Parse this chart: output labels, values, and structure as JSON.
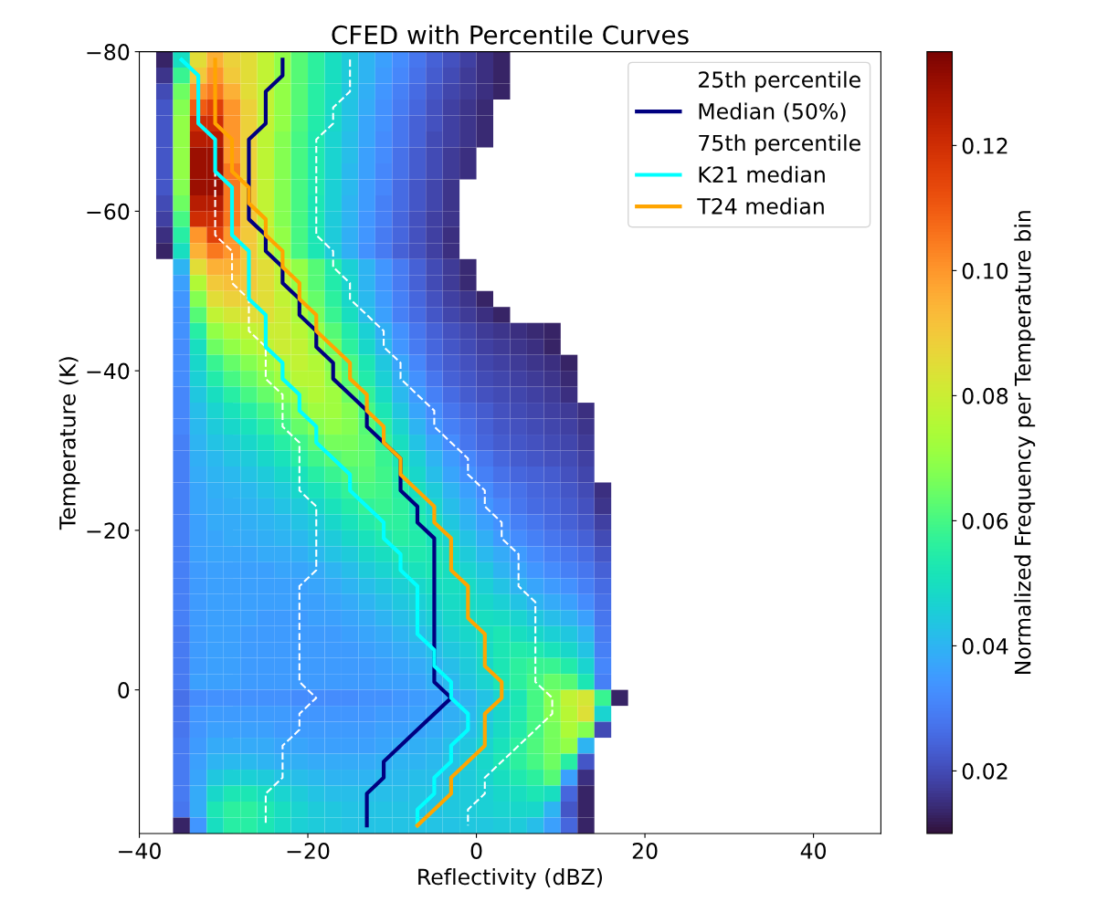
{
  "chart_data": {
    "type": "heatmap",
    "title": "CFED with Percentile Curves",
    "xlabel": "Reflectivity (dBZ)",
    "ylabel": "Temperature (K)",
    "clabel": "Normalized Frequency per Temperature bin",
    "x": [
      -37,
      -35,
      -33,
      -31,
      -29,
      -27,
      -25,
      -23,
      -21,
      -19,
      -17,
      -15,
      -13,
      -11,
      -9,
      -7,
      -5,
      -3,
      -1,
      1,
      3,
      5,
      7,
      9,
      11,
      13,
      15,
      17
    ],
    "xlim": [
      -40,
      48
    ],
    "ylim": [
      18,
      -80
    ],
    "xticks": [
      {
        "value": -40,
        "label": "−40"
      },
      {
        "value": -20,
        "label": "−20"
      },
      0,
      20,
      40
    ],
    "yticks": [
      {
        "value": -80,
        "label": "−80"
      },
      {
        "value": -60,
        "label": "−60"
      },
      {
        "value": -40,
        "label": "−40"
      },
      {
        "value": -20,
        "label": "−20"
      },
      0
    ],
    "clim": [
      0.01,
      0.135
    ],
    "cticks": [
      0.02,
      0.04,
      0.06,
      0.08,
      {
        "value": 0.1,
        "label": "0.10"
      },
      0.12
    ],
    "legend": "top right",
    "cells": [
      [
        0.013,
        0.05,
        0.085,
        0.095,
        0.088,
        0.085,
        0.078,
        0.07,
        0.062,
        0.056,
        0.05,
        0.045,
        0.04,
        0.036,
        0.032,
        0.028,
        0.024,
        0.021,
        0.018,
        0.015,
        0.013,
        null,
        null,
        null,
        null,
        null,
        null,
        null
      ],
      [
        0.016,
        0.058,
        0.09,
        0.1,
        0.09,
        0.085,
        0.078,
        0.07,
        0.062,
        0.056,
        0.05,
        0.045,
        0.04,
        0.035,
        0.031,
        0.027,
        0.023,
        0.02,
        0.017,
        0.015,
        0.013,
        null,
        null,
        null,
        null,
        null,
        null,
        null
      ],
      [
        0.02,
        0.065,
        0.1,
        0.105,
        0.095,
        0.085,
        0.078,
        0.07,
        0.062,
        0.055,
        0.05,
        0.044,
        0.039,
        0.034,
        0.03,
        0.026,
        0.022,
        0.019,
        0.017,
        0.015,
        0.013,
        null,
        null,
        null,
        null,
        null,
        null,
        null
      ],
      [
        0.022,
        0.068,
        0.11,
        0.115,
        0.1,
        0.088,
        0.078,
        0.07,
        0.062,
        0.055,
        0.049,
        0.043,
        0.038,
        0.033,
        0.029,
        0.025,
        0.021,
        0.018,
        0.016,
        0.014,
        null,
        null,
        null,
        null,
        null,
        null,
        null,
        null
      ],
      [
        0.022,
        0.07,
        0.12,
        0.12,
        0.1,
        0.088,
        0.078,
        0.07,
        0.061,
        0.054,
        0.048,
        0.043,
        0.037,
        0.033,
        0.028,
        0.024,
        0.021,
        0.018,
        0.016,
        0.014,
        null,
        null,
        null,
        null,
        null,
        null,
        null,
        null
      ],
      [
        0.022,
        0.07,
        0.125,
        0.125,
        0.1,
        0.088,
        0.077,
        0.068,
        0.06,
        0.053,
        0.047,
        0.042,
        0.037,
        0.032,
        0.028,
        0.024,
        0.02,
        0.018,
        0.016,
        0.014,
        null,
        null,
        null,
        null,
        null,
        null,
        null,
        null
      ],
      [
        0.022,
        0.07,
        0.13,
        0.13,
        0.1,
        0.088,
        0.077,
        0.068,
        0.06,
        0.053,
        0.047,
        0.042,
        0.036,
        0.032,
        0.027,
        0.023,
        0.02,
        0.017,
        0.015,
        null,
        null,
        null,
        null,
        null,
        null,
        null,
        null,
        null
      ],
      [
        0.022,
        0.07,
        0.13,
        0.13,
        0.105,
        0.088,
        0.077,
        0.068,
        0.06,
        0.053,
        0.047,
        0.041,
        0.036,
        0.031,
        0.027,
        0.023,
        0.02,
        0.017,
        0.015,
        null,
        null,
        null,
        null,
        null,
        null,
        null,
        null,
        null
      ],
      [
        0.022,
        0.068,
        0.13,
        0.13,
        0.105,
        0.09,
        0.078,
        0.068,
        0.06,
        0.053,
        0.046,
        0.041,
        0.035,
        0.031,
        0.026,
        0.022,
        0.019,
        0.016,
        null,
        null,
        null,
        null,
        null,
        null,
        null,
        null,
        null,
        null
      ],
      [
        0.02,
        0.065,
        0.125,
        0.125,
        0.105,
        0.09,
        0.078,
        0.068,
        0.06,
        0.052,
        0.046,
        0.04,
        0.035,
        0.03,
        0.026,
        0.022,
        0.019,
        0.016,
        null,
        null,
        null,
        null,
        null,
        null,
        null,
        null,
        null,
        null
      ],
      [
        0.018,
        0.06,
        0.12,
        0.12,
        0.105,
        0.09,
        0.078,
        0.068,
        0.06,
        0.052,
        0.045,
        0.04,
        0.034,
        0.03,
        0.025,
        0.021,
        0.018,
        0.016,
        null,
        null,
        null,
        null,
        null,
        null,
        null,
        null,
        null,
        null
      ],
      [
        0.015,
        0.055,
        0.1,
        0.115,
        0.1,
        0.09,
        0.08,
        0.07,
        0.06,
        0.052,
        0.045,
        0.039,
        0.034,
        0.029,
        0.025,
        0.021,
        0.018,
        0.015,
        null,
        null,
        null,
        null,
        null,
        null,
        null,
        null,
        null,
        null
      ],
      [
        0.013,
        0.05,
        0.095,
        0.105,
        0.1,
        0.09,
        0.08,
        0.07,
        0.06,
        0.052,
        0.045,
        0.039,
        0.033,
        0.029,
        0.024,
        0.021,
        0.018,
        0.015,
        null,
        null,
        null,
        null,
        null,
        null,
        null,
        null,
        null,
        null
      ],
      [
        null,
        0.04,
        0.085,
        0.095,
        0.095,
        0.09,
        0.085,
        0.078,
        0.07,
        0.062,
        0.054,
        0.046,
        0.04,
        0.034,
        0.029,
        0.024,
        0.02,
        0.017,
        0.014,
        null,
        null,
        null,
        null,
        null,
        null,
        null,
        null,
        null
      ],
      [
        null,
        0.036,
        0.075,
        0.09,
        0.092,
        0.09,
        0.085,
        0.078,
        0.07,
        0.062,
        0.054,
        0.047,
        0.04,
        0.034,
        0.029,
        0.024,
        0.02,
        0.017,
        0.014,
        null,
        null,
        null,
        null,
        null,
        null,
        null,
        null,
        null
      ],
      [
        null,
        0.034,
        0.068,
        0.085,
        0.088,
        0.088,
        0.085,
        0.078,
        0.072,
        0.064,
        0.056,
        0.048,
        0.041,
        0.035,
        0.03,
        0.025,
        0.021,
        0.018,
        0.016,
        0.013,
        null,
        null,
        null,
        null,
        null,
        null,
        null,
        null
      ],
      [
        null,
        0.033,
        0.062,
        0.078,
        0.082,
        0.085,
        0.084,
        0.08,
        0.074,
        0.066,
        0.058,
        0.05,
        0.042,
        0.036,
        0.03,
        0.026,
        0.022,
        0.019,
        0.017,
        0.015,
        0.013,
        null,
        null,
        null,
        null,
        null,
        null,
        null
      ],
      [
        null,
        0.033,
        0.055,
        0.07,
        0.075,
        0.078,
        0.08,
        0.08,
        0.076,
        0.07,
        0.062,
        0.054,
        0.046,
        0.039,
        0.033,
        0.028,
        0.024,
        0.021,
        0.019,
        0.017,
        0.016,
        0.015,
        0.014,
        0.013,
        null,
        null,
        null,
        null
      ],
      [
        null,
        0.032,
        0.05,
        0.065,
        0.07,
        0.074,
        0.078,
        0.08,
        0.078,
        0.072,
        0.065,
        0.056,
        0.048,
        0.041,
        0.034,
        0.029,
        0.025,
        0.022,
        0.02,
        0.018,
        0.017,
        0.016,
        0.015,
        0.013,
        null,
        null,
        null,
        null
      ],
      [
        null,
        0.032,
        0.048,
        0.058,
        0.064,
        0.068,
        0.072,
        0.076,
        0.078,
        0.075,
        0.068,
        0.06,
        0.052,
        0.044,
        0.037,
        0.031,
        0.026,
        0.023,
        0.021,
        0.019,
        0.018,
        0.017,
        0.016,
        0.015,
        0.013,
        null,
        null,
        null
      ],
      [
        null,
        0.032,
        0.046,
        0.054,
        0.06,
        0.064,
        0.068,
        0.072,
        0.076,
        0.076,
        0.07,
        0.062,
        0.054,
        0.046,
        0.039,
        0.033,
        0.028,
        0.024,
        0.022,
        0.02,
        0.019,
        0.018,
        0.017,
        0.016,
        0.014,
        null,
        null,
        null
      ],
      [
        null,
        0.031,
        0.044,
        0.05,
        0.055,
        0.06,
        0.064,
        0.068,
        0.072,
        0.075,
        0.072,
        0.065,
        0.057,
        0.049,
        0.041,
        0.035,
        0.03,
        0.026,
        0.023,
        0.021,
        0.02,
        0.019,
        0.018,
        0.017,
        0.015,
        null,
        null,
        null
      ],
      [
        null,
        0.031,
        0.042,
        0.047,
        0.051,
        0.055,
        0.059,
        0.063,
        0.068,
        0.072,
        0.072,
        0.068,
        0.06,
        0.052,
        0.044,
        0.037,
        0.032,
        0.028,
        0.025,
        0.023,
        0.021,
        0.02,
        0.019,
        0.018,
        0.017,
        0.015,
        null,
        null
      ],
      [
        null,
        0.031,
        0.041,
        0.045,
        0.048,
        0.051,
        0.055,
        0.059,
        0.064,
        0.068,
        0.07,
        0.068,
        0.062,
        0.055,
        0.047,
        0.04,
        0.034,
        0.03,
        0.027,
        0.024,
        0.022,
        0.021,
        0.02,
        0.019,
        0.018,
        0.016,
        null,
        null
      ],
      [
        null,
        0.03,
        0.04,
        0.043,
        0.045,
        0.048,
        0.051,
        0.055,
        0.059,
        0.063,
        0.066,
        0.066,
        0.063,
        0.057,
        0.05,
        0.043,
        0.037,
        0.032,
        0.028,
        0.025,
        0.023,
        0.022,
        0.021,
        0.02,
        0.019,
        0.017,
        null,
        null
      ],
      [
        null,
        0.03,
        0.039,
        0.041,
        0.043,
        0.045,
        0.048,
        0.051,
        0.055,
        0.059,
        0.062,
        0.064,
        0.063,
        0.058,
        0.052,
        0.046,
        0.04,
        0.035,
        0.031,
        0.028,
        0.025,
        0.023,
        0.022,
        0.021,
        0.02,
        0.018,
        null,
        null
      ],
      [
        null,
        0.03,
        0.038,
        0.04,
        0.041,
        0.043,
        0.045,
        0.048,
        0.051,
        0.055,
        0.058,
        0.061,
        0.062,
        0.059,
        0.054,
        0.048,
        0.042,
        0.037,
        0.033,
        0.03,
        0.027,
        0.025,
        0.024,
        0.023,
        0.021,
        0.019,
        null,
        null
      ],
      [
        null,
        0.03,
        0.037,
        0.039,
        0.04,
        0.041,
        0.043,
        0.045,
        0.048,
        0.051,
        0.054,
        0.057,
        0.06,
        0.059,
        0.055,
        0.05,
        0.045,
        0.04,
        0.036,
        0.032,
        0.029,
        0.027,
        0.025,
        0.024,
        0.022,
        0.02,
        0.015,
        null
      ],
      [
        null,
        0.03,
        0.037,
        0.038,
        0.039,
        0.04,
        0.041,
        0.043,
        0.045,
        0.048,
        0.051,
        0.054,
        0.057,
        0.058,
        0.056,
        0.052,
        0.047,
        0.042,
        0.038,
        0.034,
        0.031,
        0.028,
        0.026,
        0.025,
        0.023,
        0.021,
        0.016,
        null
      ],
      [
        null,
        0.03,
        0.036,
        0.038,
        0.038,
        0.039,
        0.04,
        0.041,
        0.043,
        0.045,
        0.048,
        0.051,
        0.054,
        0.056,
        0.056,
        0.053,
        0.049,
        0.044,
        0.04,
        0.036,
        0.033,
        0.03,
        0.028,
        0.026,
        0.024,
        0.022,
        0.018,
        null
      ],
      [
        null,
        0.03,
        0.036,
        0.037,
        0.038,
        0.038,
        0.039,
        0.04,
        0.041,
        0.043,
        0.045,
        0.048,
        0.051,
        0.053,
        0.055,
        0.054,
        0.051,
        0.047,
        0.043,
        0.039,
        0.035,
        0.032,
        0.03,
        0.028,
        0.026,
        0.024,
        0.02,
        null
      ],
      [
        null,
        0.03,
        0.036,
        0.037,
        0.037,
        0.037,
        0.038,
        0.038,
        0.039,
        0.041,
        0.043,
        0.045,
        0.048,
        0.05,
        0.052,
        0.053,
        0.052,
        0.049,
        0.045,
        0.041,
        0.038,
        0.035,
        0.032,
        0.03,
        0.028,
        0.026,
        0.022,
        null
      ],
      [
        null,
        0.03,
        0.035,
        0.036,
        0.036,
        0.036,
        0.036,
        0.037,
        0.037,
        0.038,
        0.04,
        0.042,
        0.045,
        0.047,
        0.049,
        0.051,
        0.052,
        0.05,
        0.047,
        0.044,
        0.04,
        0.037,
        0.034,
        0.032,
        0.03,
        0.028,
        0.024,
        null
      ],
      [
        null,
        0.03,
        0.035,
        0.036,
        0.036,
        0.036,
        0.036,
        0.036,
        0.036,
        0.037,
        0.038,
        0.04,
        0.042,
        0.044,
        0.046,
        0.048,
        0.05,
        0.05,
        0.049,
        0.046,
        0.043,
        0.04,
        0.037,
        0.035,
        0.033,
        0.03,
        0.026,
        null
      ],
      [
        null,
        0.03,
        0.035,
        0.036,
        0.036,
        0.036,
        0.036,
        0.036,
        0.036,
        0.036,
        0.037,
        0.038,
        0.04,
        0.042,
        0.044,
        0.046,
        0.048,
        0.049,
        0.049,
        0.048,
        0.046,
        0.043,
        0.04,
        0.038,
        0.036,
        0.032,
        0.027,
        null
      ],
      [
        null,
        0.03,
        0.035,
        0.036,
        0.036,
        0.036,
        0.035,
        0.035,
        0.035,
        0.036,
        0.036,
        0.037,
        0.038,
        0.04,
        0.042,
        0.044,
        0.046,
        0.048,
        0.049,
        0.05,
        0.049,
        0.047,
        0.044,
        0.042,
        0.04,
        0.036,
        0.028,
        null
      ],
      [
        null,
        0.029,
        0.035,
        0.036,
        0.036,
        0.035,
        0.035,
        0.035,
        0.035,
        0.035,
        0.035,
        0.036,
        0.037,
        0.038,
        0.04,
        0.042,
        0.044,
        0.046,
        0.048,
        0.05,
        0.052,
        0.05,
        0.048,
        0.046,
        0.044,
        0.04,
        0.029,
        null
      ],
      [
        null,
        0.029,
        0.035,
        0.036,
        0.036,
        0.035,
        0.035,
        0.035,
        0.035,
        0.035,
        0.035,
        0.035,
        0.036,
        0.037,
        0.038,
        0.04,
        0.042,
        0.044,
        0.046,
        0.049,
        0.052,
        0.054,
        0.053,
        0.051,
        0.048,
        0.043,
        0.03,
        null
      ],
      [
        null,
        0.029,
        0.035,
        0.036,
        0.036,
        0.035,
        0.035,
        0.035,
        0.035,
        0.035,
        0.035,
        0.035,
        0.035,
        0.036,
        0.037,
        0.038,
        0.04,
        0.042,
        0.045,
        0.048,
        0.052,
        0.056,
        0.058,
        0.058,
        0.054,
        0.047,
        0.031,
        null
      ],
      [
        null,
        0.029,
        0.036,
        0.036,
        0.036,
        0.035,
        0.035,
        0.035,
        0.035,
        0.035,
        0.035,
        0.035,
        0.035,
        0.036,
        0.036,
        0.037,
        0.039,
        0.041,
        0.044,
        0.047,
        0.052,
        0.056,
        0.06,
        0.064,
        0.062,
        0.052,
        0.03,
        null
      ],
      [
        null,
        0.027,
        0.032,
        0.033,
        0.033,
        0.033,
        0.033,
        0.033,
        0.032,
        0.032,
        0.032,
        0.032,
        0.033,
        0.033,
        0.034,
        0.035,
        0.036,
        0.038,
        0.04,
        0.043,
        0.047,
        0.052,
        0.06,
        0.068,
        0.078,
        0.082,
        0.058,
        0.013
      ],
      [
        null,
        0.028,
        0.034,
        0.035,
        0.035,
        0.035,
        0.035,
        0.035,
        0.034,
        0.034,
        0.034,
        0.034,
        0.034,
        0.035,
        0.035,
        0.036,
        0.037,
        0.039,
        0.041,
        0.044,
        0.048,
        0.053,
        0.06,
        0.068,
        0.076,
        0.084,
        0.047,
        null
      ],
      [
        null,
        0.028,
        0.034,
        0.036,
        0.036,
        0.036,
        0.036,
        0.035,
        0.035,
        0.035,
        0.035,
        0.035,
        0.035,
        0.036,
        0.036,
        0.037,
        0.038,
        0.04,
        0.042,
        0.045,
        0.049,
        0.054,
        0.06,
        0.066,
        0.074,
        0.068,
        0.02,
        null
      ],
      [
        null,
        0.029,
        0.035,
        0.038,
        0.038,
        0.038,
        0.038,
        0.037,
        0.037,
        0.036,
        0.036,
        0.036,
        0.036,
        0.037,
        0.038,
        0.039,
        0.04,
        0.042,
        0.044,
        0.047,
        0.051,
        0.056,
        0.061,
        0.066,
        0.07,
        0.04,
        null,
        null
      ],
      [
        null,
        0.029,
        0.036,
        0.04,
        0.041,
        0.041,
        0.04,
        0.039,
        0.039,
        0.038,
        0.038,
        0.038,
        0.038,
        0.039,
        0.04,
        0.04,
        0.041,
        0.043,
        0.045,
        0.048,
        0.052,
        0.056,
        0.06,
        0.065,
        0.055,
        0.022,
        null,
        null
      ],
      [
        null,
        0.029,
        0.037,
        0.044,
        0.046,
        0.046,
        0.045,
        0.043,
        0.042,
        0.041,
        0.04,
        0.04,
        0.04,
        0.041,
        0.041,
        0.042,
        0.042,
        0.043,
        0.045,
        0.047,
        0.05,
        0.053,
        0.056,
        0.062,
        0.036,
        0.015,
        null,
        null
      ],
      [
        null,
        0.029,
        0.038,
        0.048,
        0.052,
        0.052,
        0.05,
        0.047,
        0.045,
        0.043,
        0.042,
        0.042,
        0.042,
        0.042,
        0.042,
        0.043,
        0.043,
        0.044,
        0.045,
        0.046,
        0.048,
        0.05,
        0.052,
        0.05,
        0.025,
        0.013,
        null,
        null
      ],
      [
        null,
        0.028,
        0.038,
        0.052,
        0.056,
        0.056,
        0.053,
        0.05,
        0.047,
        0.045,
        0.044,
        0.043,
        0.043,
        0.043,
        0.043,
        0.043,
        0.043,
        0.044,
        0.045,
        0.046,
        0.047,
        0.048,
        0.048,
        0.04,
        0.022,
        0.013,
        null,
        null
      ],
      [
        null,
        0.013,
        0.034,
        0.05,
        0.055,
        0.055,
        0.052,
        0.049,
        0.046,
        0.045,
        0.044,
        0.043,
        0.043,
        0.043,
        0.043,
        0.043,
        0.043,
        0.043,
        0.044,
        0.044,
        0.045,
        0.045,
        0.042,
        0.036,
        0.025,
        0.013,
        null,
        null
      ]
    ],
    "series": [
      {
        "name": "25th percentile",
        "type": "line",
        "color": "#ffffff",
        "line_style": "dashed",
        "x": [
          -31,
          -31,
          -31,
          -31,
          -31,
          -31,
          -31,
          -29,
          -29,
          -29,
          -27,
          -27,
          -27,
          -25,
          -25,
          -25,
          -23,
          -23,
          -23,
          -21,
          -21,
          -21,
          -21,
          -19,
          -19,
          -19,
          -19,
          -19,
          -21,
          -21,
          -21,
          -21,
          -21,
          -21,
          -21,
          -19,
          -21,
          -21,
          -23,
          -23,
          -23,
          -25,
          -25,
          -25
        ],
        "values": [
          -69,
          -67,
          -65,
          -63,
          -61,
          -59,
          -57,
          -55,
          -53,
          -51,
          -49,
          -47,
          -45,
          -43,
          -41,
          -39,
          -37,
          -35,
          -33,
          -31,
          -29,
          -27,
          -25,
          -23,
          -21,
          -19,
          -17,
          -15,
          -13,
          -11,
          -9,
          -7,
          -5,
          -3,
          -1,
          1,
          3,
          5,
          7,
          9,
          11,
          13,
          15,
          17
        ]
      },
      {
        "name": "Median (50%)",
        "type": "line",
        "color": "#000080",
        "line_style": "solid",
        "x": [
          -23,
          -23,
          -25,
          -25,
          -25,
          -27,
          -27,
          -27,
          -27,
          -27,
          -27,
          -25,
          -25,
          -23,
          -23,
          -21,
          -21,
          -19,
          -19,
          -17,
          -17,
          -15,
          -13,
          -13,
          -11,
          -9,
          -9,
          -9,
          -7,
          -7,
          -5,
          -5,
          -5,
          -5,
          -5,
          -5,
          -5,
          -5,
          -5,
          -5,
          -3,
          -5,
          -7,
          -9,
          -11,
          -11,
          -13,
          -13,
          -13
        ],
        "values": [
          -79,
          -77,
          -75,
          -73,
          -71,
          -69,
          -67,
          -65,
          -63,
          -61,
          -59,
          -57,
          -55,
          -53,
          -51,
          -49,
          -47,
          -45,
          -43,
          -41,
          -39,
          -37,
          -35,
          -33,
          -31,
          -29,
          -27,
          -25,
          -23,
          -21,
          -19,
          -17,
          -15,
          -13,
          -11,
          -9,
          -7,
          -5,
          -3,
          -1,
          1,
          3,
          5,
          7,
          9,
          11,
          13,
          15,
          17
        ]
      },
      {
        "name": "75th percentile",
        "type": "line",
        "color": "#ffffff",
        "line_style": "dashed",
        "x": [
          -15,
          -15,
          -15,
          -17,
          -17,
          -19,
          -19,
          -19,
          -19,
          -19,
          -19,
          -19,
          -17,
          -17,
          -15,
          -15,
          -13,
          -11,
          -11,
          -9,
          -9,
          -7,
          -5,
          -5,
          -3,
          -1,
          -1,
          1,
          1,
          3,
          3,
          5,
          5,
          5,
          7,
          7,
          7,
          7,
          7,
          7,
          9,
          9,
          7,
          5,
          3,
          1,
          1,
          -1,
          -1
        ],
        "values": [
          -79,
          -77,
          -75,
          -73,
          -71,
          -69,
          -67,
          -65,
          -63,
          -61,
          -59,
          -57,
          -55,
          -53,
          -51,
          -49,
          -47,
          -45,
          -43,
          -41,
          -39,
          -37,
          -35,
          -33,
          -31,
          -29,
          -27,
          -25,
          -23,
          -21,
          -19,
          -17,
          -15,
          -13,
          -11,
          -9,
          -7,
          -5,
          -3,
          -1,
          1,
          3,
          5,
          7,
          9,
          11,
          13,
          15,
          17
        ]
      },
      {
        "name": "K21 median",
        "type": "line",
        "color": "#00ffff",
        "line_style": "solid",
        "x": [
          -35,
          -33,
          -33,
          -33,
          -33,
          -31,
          -31,
          -31,
          -29,
          -29,
          -29,
          -29,
          -27,
          -27,
          -27,
          -27,
          -25,
          -25,
          -25,
          -23,
          -23,
          -21,
          -21,
          -19,
          -19,
          -17,
          -15,
          -15,
          -13,
          -11,
          -11,
          -9,
          -9,
          -7,
          -7,
          -7,
          -7,
          -5,
          -5,
          -3,
          -3,
          -1,
          -1,
          -3,
          -3,
          -5,
          -5,
          -7,
          -7
        ],
        "values": [
          -79,
          -77,
          -75,
          -73,
          -71,
          -69,
          -67,
          -65,
          -63,
          -61,
          -59,
          -57,
          -55,
          -53,
          -51,
          -49,
          -47,
          -45,
          -43,
          -41,
          -39,
          -37,
          -35,
          -33,
          -31,
          -29,
          -27,
          -25,
          -23,
          -21,
          -19,
          -17,
          -15,
          -13,
          -11,
          -9,
          -7,
          -5,
          -3,
          -1,
          1,
          3,
          5,
          7,
          9,
          11,
          13,
          15,
          17
        ]
      },
      {
        "name": "T24 median",
        "type": "line",
        "color": "#ffa500",
        "line_style": "solid",
        "x": [
          -31,
          -31,
          -31,
          -31,
          -31,
          -29,
          -29,
          -29,
          -27,
          -27,
          -25,
          -25,
          -23,
          -23,
          -21,
          -21,
          -19,
          -19,
          -17,
          -15,
          -15,
          -13,
          -13,
          -11,
          -11,
          -9,
          -9,
          -7,
          -5,
          -5,
          -3,
          -3,
          -3,
          -1,
          -1,
          -1,
          1,
          1,
          1,
          3,
          3,
          1,
          1,
          1,
          -1,
          -3,
          -3,
          -5,
          -7
        ],
        "values": [
          -79,
          -77,
          -75,
          -73,
          -71,
          -69,
          -67,
          -65,
          -63,
          -61,
          -59,
          -57,
          -55,
          -53,
          -51,
          -49,
          -47,
          -45,
          -43,
          -41,
          -39,
          -37,
          -35,
          -33,
          -31,
          -29,
          -27,
          -25,
          -23,
          -21,
          -19,
          -17,
          -15,
          -13,
          -11,
          -9,
          -7,
          -5,
          -3,
          -1,
          1,
          3,
          5,
          7,
          9,
          11,
          13,
          15,
          17
        ]
      }
    ]
  }
}
